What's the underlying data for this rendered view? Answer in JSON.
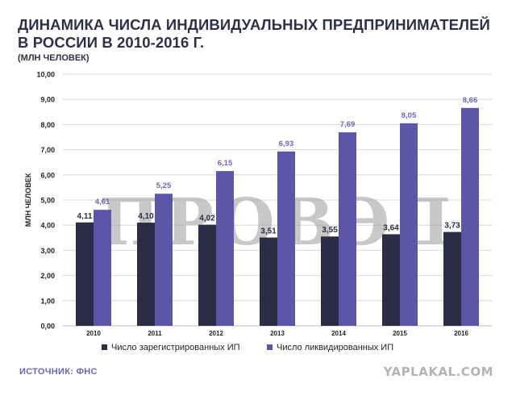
{
  "header": {
    "title": "ДИНАМИКА ЧИСЛА ИНДИВИДУАЛЬНЫХ ПРЕДПРИНИМАТЕЛЕЙ В РОССИИ В 2010-2016 Г.",
    "subtitle": "(МЛН ЧЕЛОВЕК)"
  },
  "footer": {
    "source": "ИСТОЧНИК: ФНС",
    "site": "YAPLAKAL.COM"
  },
  "watermark": "ПРОВЭД",
  "colors": {
    "registered": "#2b2d45",
    "liquidated": "#5b56a8",
    "liquidated_label": "#6b66bb",
    "grid": "#d9d9d9",
    "axis_text": "#222222"
  },
  "chart_data": {
    "type": "bar",
    "ylabel": "МЛН ЧЕЛОВЕК",
    "ylim": [
      0,
      10
    ],
    "ytick_labels": [
      "0,00",
      "1,00",
      "2,00",
      "3,00",
      "4,00",
      "5,00",
      "6,00",
      "7,00",
      "8,00",
      "9,00",
      "10,00"
    ],
    "categories": [
      "2010",
      "2011",
      "2012",
      "2013",
      "2014",
      "2015",
      "2016"
    ],
    "grid": true,
    "legend_position": "bottom",
    "series": [
      {
        "name": "Число зарегистрированных ИП",
        "values": [
          4.11,
          4.1,
          4.02,
          3.51,
          3.55,
          3.64,
          3.73
        ],
        "labels": [
          "4,11",
          "4,10",
          "4,02",
          "3,51",
          "3,55",
          "3,64",
          "3,73"
        ]
      },
      {
        "name": "Число ликвидированных ИП",
        "values": [
          4.61,
          5.25,
          6.15,
          6.93,
          7.69,
          8.05,
          8.66
        ],
        "labels": [
          "4,61",
          "5,25",
          "6,15",
          "6,93",
          "7,69",
          "8,05",
          "8,66"
        ]
      }
    ]
  }
}
